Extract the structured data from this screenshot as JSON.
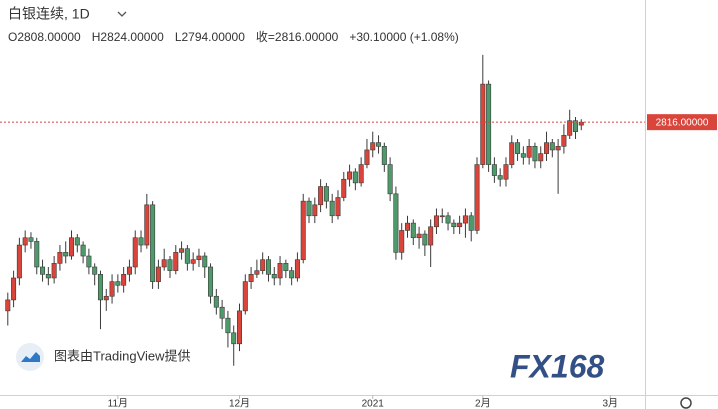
{
  "chart_data": {
    "type": "candlestick",
    "title": "白银连续, 1D",
    "header": [
      "O2808.00000",
      "H2824.00000",
      "L2794.00000",
      "收=2816.00000",
      "+30.10000 (+1.08%)"
    ],
    "credit": "图表由TradingView提供",
    "watermark": "FX168",
    "up_color": "#d9453b",
    "down_color": "#4e9a6b",
    "price_line": {
      "value": 2816,
      "label": "2816.00000"
    },
    "xlim": [
      -1,
      110
    ],
    "xticks": [
      {
        "value": 19,
        "label": "11月"
      },
      {
        "value": 40,
        "label": "12月"
      },
      {
        "value": 63,
        "label": "2021"
      },
      {
        "value": 82,
        "label": "2月"
      },
      {
        "value": 104,
        "label": "3月"
      }
    ],
    "ylim": [
      2070,
      3150
    ],
    "open": [
      2300,
      2330,
      2390,
      2480,
      2500,
      2490,
      2420,
      2400,
      2390,
      2430,
      2460,
      2450,
      2500,
      2480,
      2450,
      2420,
      2400,
      2330,
      2340,
      2380,
      2370,
      2400,
      2420,
      2500,
      2480,
      2590,
      2380,
      2420,
      2440,
      2410,
      2460,
      2470,
      2430,
      2440,
      2450,
      2420,
      2340,
      2310,
      2280,
      2240,
      2210,
      2300,
      2380,
      2400,
      2410,
      2440,
      2400,
      2390,
      2430,
      2410,
      2390,
      2440,
      2600,
      2560,
      2590,
      2640,
      2600,
      2560,
      2610,
      2660,
      2680,
      2650,
      2700,
      2740,
      2760,
      2750,
      2700,
      2620,
      2460,
      2520,
      2540,
      2500,
      2510,
      2480,
      2530,
      2560,
      2560,
      2540,
      2530,
      2540,
      2560,
      2520,
      2700,
      2920,
      2700,
      2670,
      2660,
      2700,
      2760,
      2730,
      2720,
      2750,
      2710,
      2730,
      2760,
      2740,
      2750,
      2780,
      2820,
      2808
    ],
    "high": [
      2350,
      2410,
      2500,
      2520,
      2515,
      2500,
      2440,
      2420,
      2450,
      2480,
      2490,
      2520,
      2510,
      2490,
      2470,
      2430,
      2410,
      2360,
      2400,
      2400,
      2420,
      2440,
      2520,
      2520,
      2620,
      2600,
      2440,
      2470,
      2450,
      2480,
      2490,
      2480,
      2460,
      2470,
      2460,
      2430,
      2360,
      2330,
      2300,
      2260,
      2320,
      2400,
      2420,
      2440,
      2460,
      2450,
      2420,
      2450,
      2440,
      2420,
      2460,
      2620,
      2610,
      2610,
      2660,
      2650,
      2620,
      2630,
      2680,
      2700,
      2690,
      2720,
      2770,
      2790,
      2780,
      2760,
      2720,
      2640,
      2540,
      2560,
      2550,
      2530,
      2520,
      2550,
      2580,
      2580,
      2570,
      2550,
      2560,
      2580,
      2570,
      2720,
      3000,
      2930,
      2720,
      2690,
      2720,
      2780,
      2770,
      2750,
      2770,
      2760,
      2750,
      2790,
      2770,
      2770,
      2810,
      2850,
      2830,
      2824
    ],
    "low": [
      2260,
      2310,
      2370,
      2460,
      2470,
      2400,
      2380,
      2370,
      2375,
      2410,
      2430,
      2440,
      2460,
      2430,
      2400,
      2370,
      2250,
      2300,
      2320,
      2350,
      2350,
      2380,
      2400,
      2460,
      2470,
      2360,
      2360,
      2410,
      2390,
      2400,
      2440,
      2410,
      2410,
      2420,
      2390,
      2320,
      2290,
      2250,
      2200,
      2150,
      2190,
      2290,
      2360,
      2390,
      2400,
      2380,
      2370,
      2370,
      2390,
      2370,
      2380,
      2430,
      2540,
      2540,
      2570,
      2580,
      2540,
      2550,
      2600,
      2640,
      2630,
      2640,
      2690,
      2720,
      2730,
      2680,
      2600,
      2440,
      2440,
      2500,
      2480,
      2470,
      2450,
      2420,
      2510,
      2540,
      2520,
      2510,
      2510,
      2500,
      2490,
      2510,
      2690,
      2680,
      2650,
      2640,
      2640,
      2690,
      2710,
      2700,
      2700,
      2690,
      2690,
      2710,
      2720,
      2620,
      2730,
      2770,
      2770,
      2794
    ],
    "close": [
      2330,
      2390,
      2480,
      2500,
      2490,
      2420,
      2400,
      2390,
      2430,
      2460,
      2450,
      2500,
      2480,
      2450,
      2420,
      2400,
      2330,
      2340,
      2380,
      2370,
      2400,
      2420,
      2500,
      2480,
      2590,
      2380,
      2420,
      2440,
      2410,
      2460,
      2470,
      2430,
      2440,
      2450,
      2420,
      2340,
      2310,
      2280,
      2240,
      2210,
      2300,
      2380,
      2400,
      2410,
      2440,
      2400,
      2390,
      2430,
      2410,
      2390,
      2440,
      2600,
      2560,
      2590,
      2640,
      2600,
      2560,
      2610,
      2660,
      2680,
      2650,
      2700,
      2740,
      2760,
      2750,
      2700,
      2620,
      2460,
      2520,
      2540,
      2500,
      2510,
      2480,
      2530,
      2560,
      2560,
      2540,
      2530,
      2540,
      2560,
      2520,
      2700,
      2920,
      2700,
      2670,
      2660,
      2700,
      2760,
      2730,
      2720,
      2750,
      2710,
      2730,
      2760,
      2740,
      2750,
      2780,
      2820,
      2790,
      2816
    ]
  }
}
